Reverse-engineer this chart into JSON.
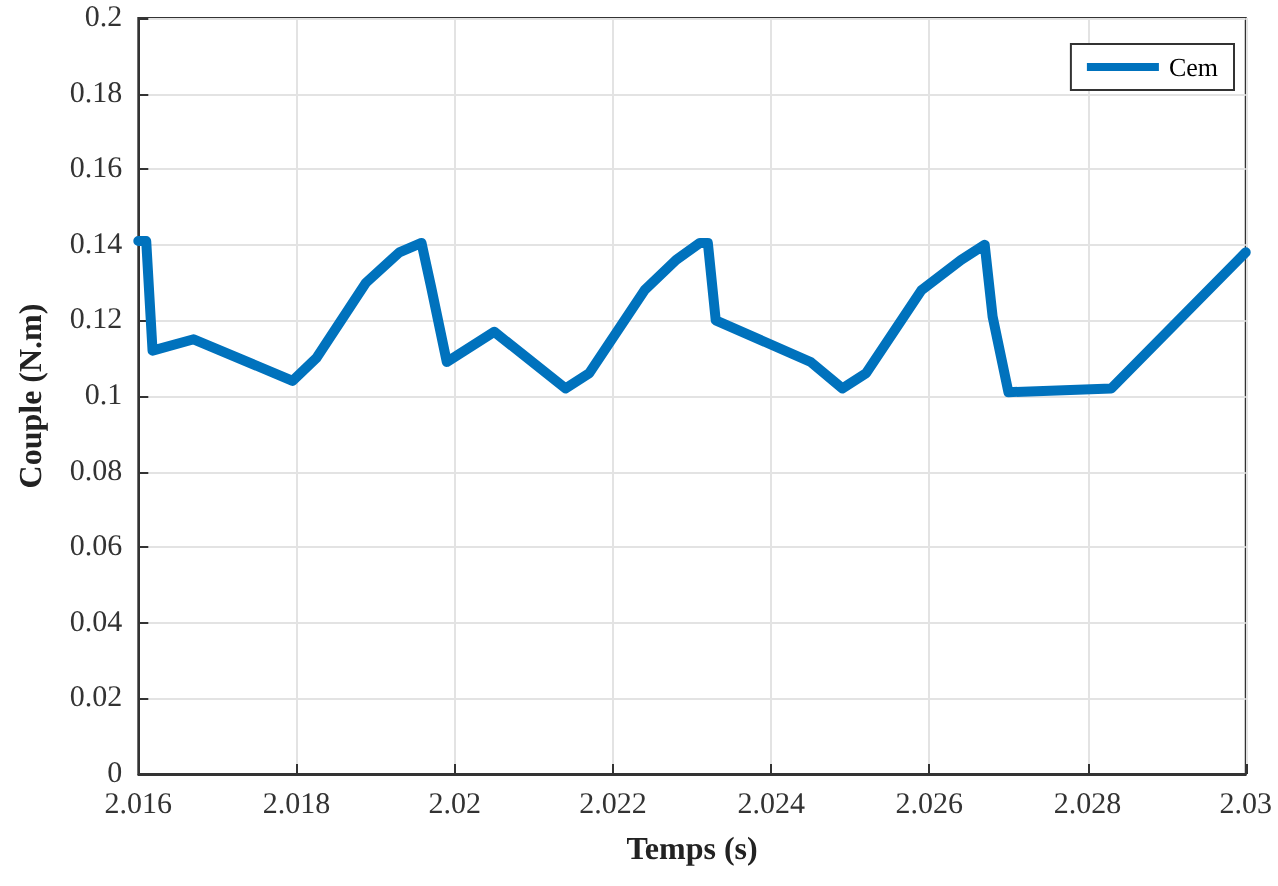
{
  "chart_data": {
    "type": "line",
    "xlabel": "Temps (s)",
    "ylabel": "Couple (N.m)",
    "x": [
      2.016,
      2.0161,
      2.01618,
      2.0167,
      2.01795,
      2.01825,
      2.01888,
      2.0193,
      2.01958,
      2.0197,
      2.0199,
      2.0205,
      2.0214,
      2.0217,
      2.0224,
      2.0228,
      2.0231,
      2.0232,
      2.0233,
      2.0245,
      2.0249,
      2.0252,
      2.0259,
      2.0264,
      2.0267,
      2.0268,
      2.027,
      2.0283,
      2.03
    ],
    "series": [
      {
        "name": "Cem",
        "color": "#0072bd",
        "values": [
          0.141,
          0.141,
          0.112,
          0.115,
          0.104,
          0.11,
          0.13,
          0.138,
          0.1405,
          0.129,
          0.109,
          0.117,
          0.102,
          0.106,
          0.128,
          0.136,
          0.1405,
          0.1405,
          0.12,
          0.109,
          0.102,
          0.106,
          0.128,
          0.136,
          0.14,
          0.121,
          0.101,
          0.102,
          0.138
        ]
      }
    ],
    "xlim": [
      2.016,
      2.03
    ],
    "xticks": [
      2.016,
      2.018,
      2.02,
      2.022,
      2.024,
      2.026,
      2.028,
      2.03
    ],
    "ylim": [
      0,
      0.2
    ],
    "yticks": [
      0,
      0.02,
      0.04,
      0.06,
      0.08,
      0.1,
      0.12,
      0.14,
      0.16,
      0.18,
      0.2
    ],
    "grid": true,
    "legend": "top right",
    "marker": "none",
    "line_style": "solid"
  }
}
